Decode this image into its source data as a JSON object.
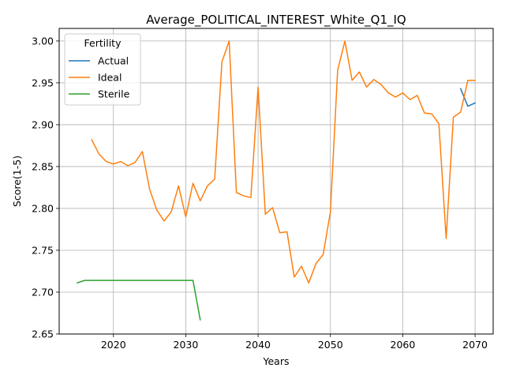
{
  "chart_data": {
    "type": "line",
    "title": "Average_POLITICAL_INTEREST_White_Q1_IQ",
    "xlabel": "Years",
    "ylabel": "Score(1-5)",
    "xlim": [
      2012.5,
      2072.5
    ],
    "ylim": [
      2.65,
      3.015
    ],
    "xticks": [
      2020,
      2030,
      2040,
      2050,
      2060,
      2070
    ],
    "yticks": [
      2.65,
      2.7,
      2.75,
      2.8,
      2.85,
      2.9,
      2.95,
      3.0
    ],
    "ytick_labels": [
      "2.65",
      "2.70",
      "2.75",
      "2.80",
      "2.85",
      "2.90",
      "2.95",
      "3.00"
    ],
    "grid": true,
    "legend": {
      "title": "Fertility",
      "placement": "top-left"
    },
    "series": [
      {
        "name": "Actual",
        "color": "#1f77b4",
        "x": [
          2068,
          2069,
          2070
        ],
        "y": [
          2.943,
          2.922,
          2.926
        ]
      },
      {
        "name": "Ideal",
        "color": "#ff7f0e",
        "x": [
          2017,
          2018,
          2019,
          2020,
          2021,
          2022,
          2023,
          2024,
          2025,
          2026,
          2027,
          2028,
          2029,
          2030,
          2031,
          2032,
          2033,
          2034,
          2035,
          2036,
          2037,
          2038,
          2039,
          2040,
          2041,
          2042,
          2043,
          2044,
          2045,
          2046,
          2047,
          2048,
          2049,
          2050,
          2051,
          2052,
          2053,
          2054,
          2055,
          2056,
          2057,
          2058,
          2059,
          2060,
          2061,
          2062,
          2063,
          2064,
          2065,
          2066,
          2067,
          2068,
          2069,
          2070
        ],
        "y": [
          2.882,
          2.865,
          2.856,
          2.853,
          2.856,
          2.851,
          2.855,
          2.868,
          2.823,
          2.798,
          2.785,
          2.796,
          2.827,
          2.79,
          2.83,
          2.809,
          2.827,
          2.835,
          2.975,
          3.0,
          2.819,
          2.815,
          2.813,
          2.945,
          2.793,
          2.801,
          2.771,
          2.772,
          2.718,
          2.731,
          2.711,
          2.734,
          2.745,
          2.796,
          2.965,
          3.0,
          2.953,
          2.963,
          2.945,
          2.954,
          2.948,
          2.938,
          2.933,
          2.938,
          2.93,
          2.935,
          2.914,
          2.913,
          2.901,
          2.764,
          2.909,
          2.915,
          2.953,
          2.953
        ]
      },
      {
        "name": "Sterile",
        "color": "#2ca02c",
        "x": [
          2015,
          2016,
          2017,
          2018,
          2019,
          2020,
          2021,
          2022,
          2023,
          2024,
          2025,
          2026,
          2027,
          2028,
          2029,
          2030,
          2031,
          2032
        ],
        "y": [
          2.711,
          2.714,
          2.714,
          2.714,
          2.714,
          2.714,
          2.714,
          2.714,
          2.714,
          2.714,
          2.714,
          2.714,
          2.714,
          2.714,
          2.714,
          2.714,
          2.714,
          2.667
        ]
      }
    ]
  }
}
